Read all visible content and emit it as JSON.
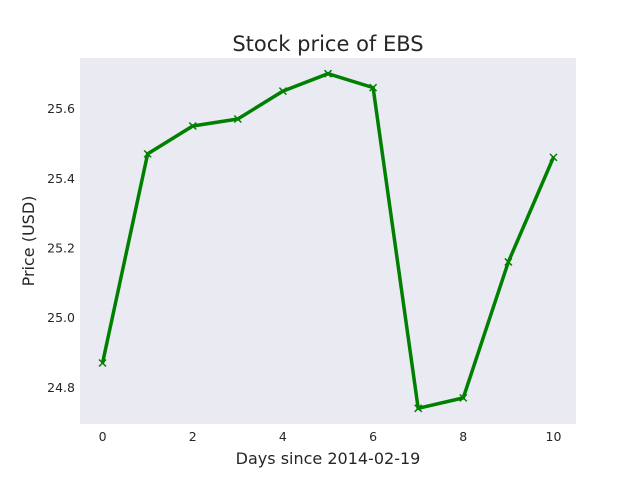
{
  "chart_data": {
    "type": "line",
    "title": "Stock price of EBS",
    "xlabel": "Days since 2014-02-19",
    "ylabel": "Price (USD)",
    "x": [
      0,
      1,
      2,
      3,
      4,
      5,
      6,
      7,
      8,
      9,
      10
    ],
    "series": [
      {
        "values": [
          24.87,
          25.47,
          25.55,
          25.57,
          25.65,
          25.7,
          25.66,
          24.74,
          24.77,
          25.16,
          25.46
        ],
        "color": "#008000",
        "marker": "x"
      }
    ],
    "xticks": [
      "0",
      "2",
      "4",
      "6",
      "8",
      "10"
    ],
    "yticks": [
      "24.8",
      "25.0",
      "25.2",
      "25.4",
      "25.6"
    ],
    "xlim": [
      -0.5,
      10.5
    ],
    "ylim": [
      24.695,
      25.745
    ],
    "grid": false,
    "plot_background": "#eaeaf2"
  }
}
